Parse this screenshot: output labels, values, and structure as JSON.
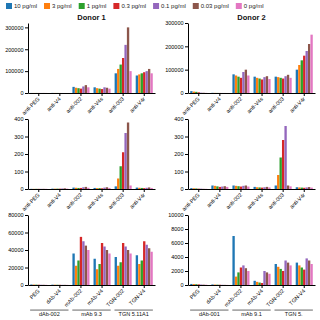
{
  "chart_data": [
    {
      "type": "bar",
      "title": "Donor 1",
      "legend": "top",
      "categories": [
        "anti-PEG",
        "anti-V4",
        "anti-002",
        "anti-V4s",
        "anti-003",
        "anti-V4r"
      ],
      "series": [
        {
          "name": "10 pg/ml",
          "values": [
            300,
            500,
            28000,
            26000,
            90000,
            80000
          ]
        },
        {
          "name": "3 pg/ml",
          "values": [
            300,
            400,
            24000,
            22000,
            110000,
            85000
          ]
        },
        {
          "name": "1 pg/ml",
          "values": [
            300,
            300,
            22000,
            20000,
            130000,
            90000
          ]
        },
        {
          "name": "0.3 pg/ml",
          "values": [
            300,
            200,
            20000,
            18000,
            160000,
            95000
          ]
        },
        {
          "name": "0.1 pg/ml",
          "values": [
            300,
            100,
            30000,
            26000,
            220000,
            100000
          ]
        },
        {
          "name": "0.03 pg/ml",
          "values": [
            300,
            80,
            36000,
            24000,
            300000,
            110000
          ]
        },
        {
          "name": "0 pg/ml",
          "values": [
            300,
            50,
            26000,
            20000,
            100000,
            90000
          ]
        }
      ],
      "ylim": [
        0,
        320000
      ],
      "yticks": [
        0,
        100000,
        200000,
        300000
      ]
    },
    {
      "type": "bar",
      "title": "Donor 2",
      "categories": [
        "anti-PEG",
        "anti-V4",
        "anti-002",
        "anti-V4s",
        "anti-003",
        "anti-V4r"
      ],
      "series": [
        {
          "values": [
            8000,
            800,
            80000,
            70000,
            70000,
            100000
          ]
        },
        {
          "values": [
            6000,
            600,
            75000,
            65000,
            68000,
            120000
          ]
        },
        {
          "values": [
            5000,
            400,
            70000,
            62000,
            65000,
            140000
          ]
        },
        {
          "values": [
            3000,
            300,
            65000,
            58000,
            62000,
            160000
          ]
        },
        {
          "values": [
            1500,
            200,
            90000,
            68000,
            72000,
            180000
          ]
        },
        {
          "values": [
            1000,
            150,
            100000,
            72000,
            78000,
            210000
          ]
        },
        {
          "values": [
            600,
            100,
            75000,
            60000,
            65000,
            250000
          ]
        }
      ],
      "ylim": [
        0,
        300000
      ],
      "yticks": [
        0,
        100000,
        200000,
        300000
      ]
    },
    {
      "type": "bar",
      "categories": [
        "anti-PEG",
        "anti-V4",
        "anti-002",
        "anti-V4s",
        "anti-003",
        "anti-V4r"
      ],
      "series": [
        {
          "values": [
            1,
            2,
            8,
            6,
            15,
            8
          ]
        },
        {
          "values": [
            1,
            2,
            7,
            5,
            60,
            7
          ]
        },
        {
          "values": [
            1,
            2,
            6,
            5,
            130,
            6
          ]
        },
        {
          "values": [
            1,
            2,
            6,
            4,
            210,
            5
          ]
        },
        {
          "values": [
            1,
            3,
            10,
            8,
            320,
            7
          ]
        },
        {
          "values": [
            1,
            4,
            12,
            10,
            380,
            9
          ]
        },
        {
          "values": [
            1,
            2,
            7,
            6,
            20,
            6
          ]
        }
      ],
      "ylim": [
        0,
        400
      ],
      "yticks": [
        0,
        100,
        200,
        300,
        400
      ]
    },
    {
      "type": "bar",
      "categories": [
        "anti-PEG",
        "anti-V4",
        "anti-002",
        "anti-V4s",
        "anti-003",
        "anti-V4r"
      ],
      "series": [
        {
          "values": [
            5,
            20,
            20,
            12,
            20,
            10
          ]
        },
        {
          "values": [
            4,
            18,
            18,
            10,
            80,
            9
          ]
        },
        {
          "values": [
            3,
            15,
            16,
            9,
            180,
            8
          ]
        },
        {
          "values": [
            2,
            12,
            14,
            8,
            280,
            7
          ]
        },
        {
          "values": [
            2,
            14,
            18,
            10,
            360,
            9
          ]
        },
        {
          "values": [
            1,
            16,
            20,
            12,
            20,
            11
          ]
        },
        {
          "values": [
            1,
            12,
            14,
            9,
            15,
            8
          ]
        }
      ],
      "ylim": [
        0,
        400
      ],
      "yticks": [
        0,
        100,
        200,
        300,
        400
      ]
    },
    {
      "type": "bar",
      "categories": [
        "PEG",
        "dAb-V4",
        "mAb-002",
        "mAb-V4",
        "TGN-002",
        "TGN-V4"
      ],
      "series": [
        {
          "values": [
            600,
            400,
            36000,
            30000,
            32000,
            34000
          ]
        },
        {
          "values": [
            500,
            350,
            22000,
            18000,
            22000,
            24000
          ]
        },
        {
          "values": [
            400,
            300,
            28000,
            24000,
            26000,
            28000
          ]
        },
        {
          "values": [
            350,
            250,
            55000,
            48000,
            48000,
            50000
          ]
        },
        {
          "values": [
            300,
            200,
            50000,
            44000,
            44000,
            46000
          ]
        },
        {
          "values": [
            250,
            180,
            45000,
            40000,
            40000,
            42000
          ]
        },
        {
          "values": [
            200,
            150,
            40000,
            36000,
            36000,
            38000
          ]
        }
      ],
      "ylim": [
        0,
        80000
      ],
      "yticks": [
        0,
        20000,
        40000,
        60000,
        80000
      ],
      "annotations": [
        "dAb-002",
        "mAb 9.3",
        "TGN 5.11A1"
      ]
    },
    {
      "type": "bar",
      "categories": [
        "PEG",
        "dAb-V4",
        "mAb-002",
        "mAb-V4",
        "TGN-002",
        "TGN-V4"
      ],
      "series": [
        {
          "values": [
            150,
            80,
            7000,
            600,
            3000,
            3200
          ]
        },
        {
          "values": [
            130,
            60,
            1200,
            450,
            2600,
            2800
          ]
        },
        {
          "values": [
            110,
            50,
            1800,
            350,
            2300,
            2500
          ]
        },
        {
          "values": [
            90,
            40,
            2500,
            280,
            2000,
            2200
          ]
        },
        {
          "values": [
            70,
            30,
            2800,
            2000,
            3500,
            3800
          ]
        },
        {
          "values": [
            50,
            20,
            2400,
            1800,
            3200,
            3500
          ]
        },
        {
          "values": [
            40,
            15,
            2000,
            1600,
            2800,
            3000
          ]
        }
      ],
      "ylim": [
        0,
        10000
      ],
      "yticks": [
        0,
        2000,
        4000,
        6000,
        8000,
        10000
      ],
      "annotations": [
        "dAb-001",
        "mAb 9.1",
        "TGN 5."
      ]
    }
  ]
}
